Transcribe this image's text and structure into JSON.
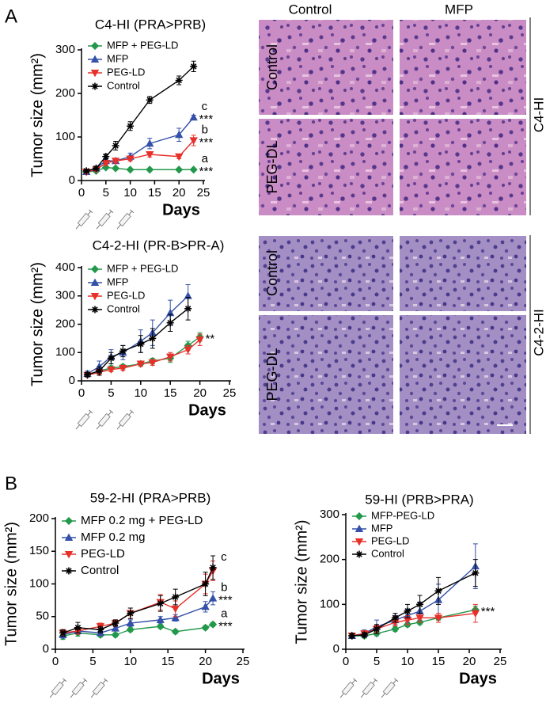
{
  "figure": {
    "panel_labels": [
      "A",
      "B"
    ],
    "histology": [
      {
        "columns": [
          "Control",
          "MFP"
        ],
        "rows": [
          "Control",
          "PEG-DL"
        ],
        "model": "C4-HI"
      },
      {
        "rows": [
          "Control",
          "PEG-DL"
        ],
        "model": "C4-2-HI"
      }
    ]
  },
  "chart_data": [
    {
      "type": "line",
      "title": "C4-HI (PRA>PRB)",
      "xlabel": "Days",
      "ylabel": "Tumor size (mm²)",
      "x": [
        1,
        3,
        5,
        7,
        10,
        14,
        20,
        23
      ],
      "xlim": [
        0,
        25
      ],
      "xticks": [
        0,
        5,
        10,
        15,
        20,
        25
      ],
      "ylim": [
        0,
        300
      ],
      "yticks": [
        0,
        100,
        200,
        300
      ],
      "series": [
        {
          "name": "MFP + PEG-LD",
          "color": "#22984a",
          "marker": "diamond",
          "values": [
            20,
            22,
            30,
            28,
            25,
            25,
            25,
            25
          ],
          "errors": [
            2,
            2,
            3,
            2,
            2,
            2,
            2,
            2
          ],
          "letter": "a",
          "stars": "***"
        },
        {
          "name": "MFP",
          "color": "#3450a8",
          "marker": "triangle-up",
          "values": [
            20,
            28,
            45,
            45,
            55,
            85,
            105,
            145
          ],
          "errors": [
            3,
            3,
            5,
            5,
            8,
            12,
            15,
            5
          ],
          "letter": "c",
          "stars": "***"
        },
        {
          "name": "PEG-LD",
          "color": "#e8302a",
          "marker": "triangle-down",
          "values": [
            20,
            25,
            40,
            45,
            50,
            60,
            55,
            92
          ],
          "errors": [
            2,
            3,
            4,
            5,
            5,
            6,
            5,
            12
          ],
          "letter": "b",
          "stars": "***"
        },
        {
          "name": "Control",
          "color": "#000000",
          "marker": "asterisk",
          "values": [
            22,
            28,
            55,
            80,
            125,
            185,
            230,
            262
          ],
          "errors": [
            3,
            4,
            6,
            10,
            10,
            8,
            10,
            12
          ]
        }
      ]
    },
    {
      "type": "line",
      "title": "C4-2-HI (PR-B>PR-A)",
      "xlabel": "Days",
      "ylabel": "Tumor size (mm²)",
      "x": [
        1,
        3,
        5,
        7,
        10,
        12,
        15,
        18,
        20
      ],
      "xlim": [
        0,
        25
      ],
      "xticks": [
        0,
        5,
        10,
        15,
        20,
        25
      ],
      "ylim": [
        0,
        400
      ],
      "yticks": [
        0,
        100,
        200,
        300,
        400
      ],
      "series": [
        {
          "name": "MFP + PEG-LD",
          "color": "#22984a",
          "marker": "diamond",
          "values": [
            22,
            35,
            45,
            50,
            60,
            70,
            80,
            125,
            155
          ],
          "errors": [
            5,
            8,
            8,
            8,
            8,
            10,
            15,
            15,
            15
          ],
          "stars": "**"
        },
        {
          "name": "MFP",
          "color": "#3450a8",
          "marker": "triangle-up",
          "values": [
            25,
            50,
            85,
            100,
            140,
            170,
            240,
            300,
            null
          ],
          "errors": [
            10,
            20,
            25,
            25,
            40,
            45,
            45,
            40,
            null
          ]
        },
        {
          "name": "PEG-LD",
          "color": "#e8302a",
          "marker": "triangle-down",
          "values": [
            20,
            30,
            40,
            45,
            60,
            65,
            85,
            110,
            145
          ],
          "errors": [
            5,
            8,
            8,
            8,
            8,
            10,
            15,
            15,
            20
          ]
        },
        {
          "name": "Control",
          "color": "#000000",
          "marker": "asterisk",
          "values": [
            22,
            35,
            80,
            105,
            130,
            150,
            205,
            255,
            null
          ],
          "errors": [
            8,
            15,
            20,
            20,
            30,
            35,
            30,
            40,
            null
          ]
        }
      ]
    },
    {
      "type": "line",
      "title": "59-2-HI (PRA>PRB)",
      "xlabel": "Days",
      "ylabel": "Tumor size (mm²)",
      "x": [
        1,
        3,
        6,
        8,
        10,
        14,
        16,
        20,
        21
      ],
      "xlim": [
        0,
        25
      ],
      "xticks": [
        0,
        5,
        10,
        15,
        20,
        25
      ],
      "ylim": [
        0,
        200
      ],
      "yticks": [
        0,
        50,
        100,
        150,
        200
      ],
      "series": [
        {
          "name": "MFP 0.2 mg + PEG-LD",
          "color": "#22984a",
          "marker": "diamond",
          "values": [
            20,
            25,
            22,
            22,
            30,
            35,
            27,
            33,
            38
          ],
          "errors": [
            5,
            5,
            3,
            3,
            3,
            3,
            3,
            3,
            3
          ],
          "letter": "a",
          "stars": "***"
        },
        {
          "name": "MFP 0.2 mg",
          "color": "#3450a8",
          "marker": "triangle-up",
          "values": [
            22,
            28,
            25,
            32,
            40,
            45,
            48,
            65,
            78
          ],
          "errors": [
            5,
            5,
            4,
            4,
            5,
            5,
            5,
            8,
            10
          ],
          "letter": "b",
          "stars": "***"
        },
        {
          "name": "PEG-LD",
          "color": "#e8302a",
          "marker": "triangle-down",
          "values": [
            25,
            28,
            35,
            40,
            55,
            72,
            62,
            100,
            120
          ],
          "errors": [
            5,
            5,
            5,
            5,
            8,
            12,
            12,
            15,
            15
          ]
        },
        {
          "name": "Control",
          "color": "#000000",
          "marker": "asterisk",
          "values": [
            25,
            33,
            30,
            40,
            55,
            70,
            80,
            100,
            125
          ],
          "errors": [
            5,
            8,
            5,
            5,
            8,
            12,
            12,
            18,
            18
          ],
          "letter": "c"
        }
      ]
    },
    {
      "type": "line",
      "title": "59-HI (PRB>PRA)",
      "xlabel": "Days",
      "ylabel": "Tumor size (mm²)",
      "x": [
        1,
        3,
        5,
        8,
        10,
        12,
        15,
        21
      ],
      "xlim": [
        0,
        25
      ],
      "xticks": [
        0,
        5,
        10,
        15,
        20,
        25
      ],
      "ylim": [
        0,
        300
      ],
      "yticks": [
        0,
        100,
        200,
        300
      ],
      "series": [
        {
          "name": "MFP-PEG-LD",
          "color": "#22984a",
          "marker": "diamond",
          "values": [
            30,
            30,
            35,
            45,
            55,
            60,
            70,
            88
          ],
          "errors": [
            5,
            5,
            5,
            5,
            5,
            5,
            5,
            8
          ],
          "stars": "***"
        },
        {
          "name": "MFP",
          "color": "#3450a8",
          "marker": "triangle-up",
          "values": [
            30,
            35,
            50,
            65,
            75,
            85,
            110,
            185
          ],
          "errors": [
            5,
            8,
            15,
            10,
            15,
            20,
            35,
            50
          ]
        },
        {
          "name": "PEG-LD",
          "color": "#e8302a",
          "marker": "triangle-down",
          "values": [
            30,
            35,
            45,
            60,
            65,
            70,
            70,
            80
          ],
          "errors": [
            5,
            5,
            8,
            8,
            10,
            10,
            10,
            20
          ]
        },
        {
          "name": "Control",
          "color": "#000000",
          "marker": "asterisk",
          "values": [
            30,
            32,
            45,
            70,
            85,
            100,
            130,
            170
          ],
          "errors": [
            5,
            5,
            10,
            10,
            15,
            20,
            30,
            30
          ]
        }
      ]
    }
  ]
}
